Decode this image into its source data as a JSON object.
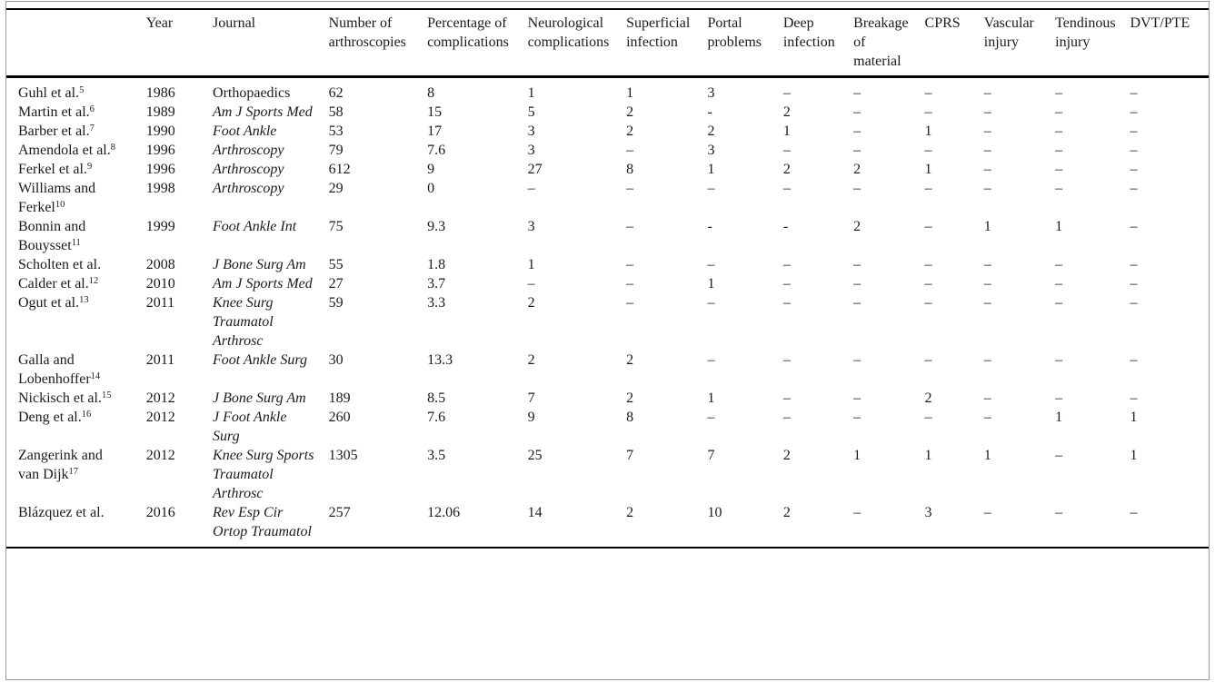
{
  "colors": {
    "background": "#ffffff",
    "text": "#1b1b1b",
    "rule": "#000000",
    "frame": "#9b9b9b"
  },
  "table": {
    "columns": [
      {
        "key": "study",
        "label": ""
      },
      {
        "key": "year",
        "label": "Year"
      },
      {
        "key": "journal",
        "label": "Journal"
      },
      {
        "key": "arthroscopies",
        "label": "Number of arthroscopies"
      },
      {
        "key": "pct",
        "label": "Percentage of complications"
      },
      {
        "key": "neuro",
        "label": "Neurological complications"
      },
      {
        "key": "superficial",
        "label": "Superficial infection"
      },
      {
        "key": "portal",
        "label": "Portal problems"
      },
      {
        "key": "deep",
        "label": "Deep infection"
      },
      {
        "key": "breakage",
        "label": "Breakage of material"
      },
      {
        "key": "cprs",
        "label": "CPRS"
      },
      {
        "key": "vascular",
        "label": "Vascular injury"
      },
      {
        "key": "tendinous",
        "label": "Tendinous injury"
      },
      {
        "key": "dvt",
        "label": "DVT/PTE"
      }
    ],
    "rows": [
      {
        "study": "Guhl et al.",
        "study_sup": "5",
        "year": "1986",
        "journal": "Orthopaedics",
        "journal_italic": false,
        "values": [
          "62",
          "8",
          "1",
          "1",
          "3",
          "–",
          "–",
          "–",
          "–",
          "–",
          "–"
        ]
      },
      {
        "study": "Martin et al.",
        "study_sup": "6",
        "year": "1989",
        "journal": "Am J Sports Med",
        "journal_italic": true,
        "values": [
          "58",
          "15",
          "5",
          "2",
          "-",
          "2",
          "–",
          "–",
          "–",
          "–",
          "–"
        ]
      },
      {
        "study": "Barber et al.",
        "study_sup": "7",
        "year": "1990",
        "journal": "Foot Ankle",
        "journal_italic": true,
        "values": [
          "53",
          "17",
          "3",
          "2",
          "2",
          "1",
          "–",
          "1",
          "–",
          "–",
          "–"
        ]
      },
      {
        "study": "Amendola et al.",
        "study_sup": "8",
        "year": "1996",
        "journal": "Arthroscopy",
        "journal_italic": true,
        "values": [
          "79",
          "7.6",
          "3",
          "–",
          "3",
          "–",
          "–",
          "–",
          "–",
          "–",
          "–"
        ]
      },
      {
        "study": "Ferkel et al.",
        "study_sup": "9",
        "year": "1996",
        "journal": "Arthroscopy",
        "journal_italic": true,
        "values": [
          "612",
          "9",
          "27",
          "8",
          "1",
          "2",
          "2",
          "1",
          "–",
          "–",
          "–"
        ]
      },
      {
        "study": "Williams and Ferkel",
        "study_sup": "10",
        "year": "1998",
        "journal": "Arthroscopy",
        "journal_italic": true,
        "values": [
          "29",
          "0",
          "–",
          "–",
          "–",
          "–",
          "–",
          "–",
          "–",
          "–",
          "–"
        ]
      },
      {
        "study": "Bonnin and Bouysset",
        "study_sup": "11",
        "year": "1999",
        "journal": "Foot Ankle Int",
        "journal_italic": true,
        "values": [
          "75",
          "9.3",
          "3",
          "–",
          "-",
          "-",
          "2",
          "–",
          "1",
          "1",
          "–"
        ]
      },
      {
        "study": "Scholten et al.",
        "study_sup": "",
        "year": "2008",
        "journal": "J Bone Surg Am",
        "journal_italic": true,
        "values": [
          "55",
          "1.8",
          "1",
          "–",
          "–",
          "–",
          "–",
          "–",
          "–",
          "–",
          "–"
        ]
      },
      {
        "study": "Calder et al.",
        "study_sup": "12",
        "year": "2010",
        "journal": "Am J Sports Med",
        "journal_italic": true,
        "values": [
          "27",
          "3.7",
          "–",
          "–",
          "1",
          "–",
          "–",
          "–",
          "–",
          "–",
          "–"
        ]
      },
      {
        "study": "Ogut et al.",
        "study_sup": "13",
        "year": "2011",
        "journal": "Knee Surg Traumatol Arthrosc",
        "journal_italic": true,
        "values": [
          "59",
          "3.3",
          "2",
          "–",
          "–",
          "–",
          "–",
          "–",
          "–",
          "–",
          "–"
        ]
      },
      {
        "study": "Galla and Lobenhoffer",
        "study_sup": "14",
        "year": "2011",
        "journal": "Foot Ankle Surg",
        "journal_italic": true,
        "values": [
          "30",
          "13.3",
          "2",
          "2",
          "–",
          "–",
          "–",
          "–",
          "–",
          "–",
          "–"
        ]
      },
      {
        "study": "Nickisch et al.",
        "study_sup": "15",
        "year": "2012",
        "journal": "J Bone Surg Am",
        "journal_italic": true,
        "values": [
          "189",
          "8.5",
          "7",
          "2",
          "1",
          "–",
          "–",
          "2",
          "–",
          "–",
          "–"
        ]
      },
      {
        "study": "Deng et al.",
        "study_sup": "16",
        "year": "2012",
        "journal": "J Foot Ankle Surg",
        "journal_italic": true,
        "values": [
          "260",
          "7.6",
          "9",
          "8",
          "–",
          "–",
          "–",
          "–",
          "–",
          "1",
          "1"
        ]
      },
      {
        "study": "Zangerink and van Dijk",
        "study_sup": "17",
        "year": "2012",
        "journal": "Knee Surg Sports Traumatol Arthrosc",
        "journal_italic": true,
        "values": [
          "1305",
          "3.5",
          "25",
          "7",
          "7",
          "2",
          "1",
          "1",
          "1",
          "–",
          "1"
        ]
      },
      {
        "study": "Blázquez et al.",
        "study_sup": "",
        "year": "2016",
        "journal": "Rev Esp Cir Ortop Traumatol",
        "journal_italic": true,
        "values": [
          "257",
          "12.06",
          "14",
          "2",
          "10",
          "2",
          "–",
          "3",
          "–",
          "–",
          "–"
        ]
      }
    ]
  }
}
